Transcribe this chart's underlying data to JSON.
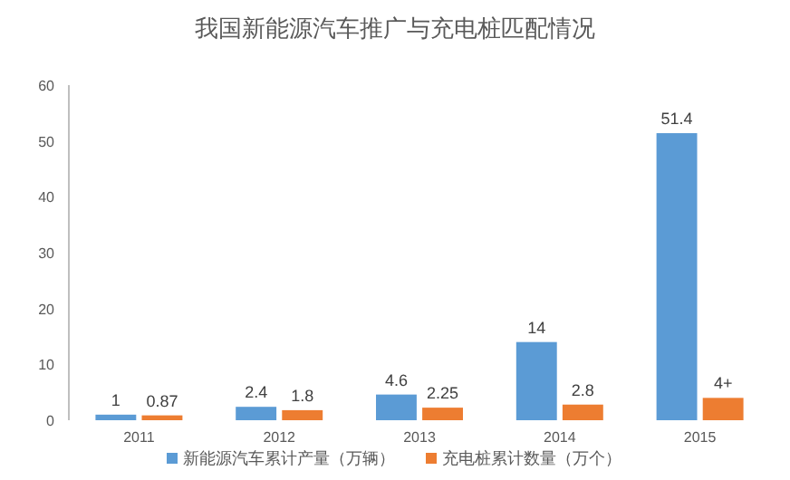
{
  "chart_data": {
    "type": "bar",
    "title": "我国新能源汽车推广与充电桩匹配情况",
    "categories": [
      "2011",
      "2012",
      "2013",
      "2014",
      "2015"
    ],
    "series": [
      {
        "name": "新能源汽车累计产量（万辆）",
        "color": "#5b9bd5",
        "values": [
          1,
          2.4,
          4.6,
          14,
          51.4
        ],
        "value_labels": [
          "1",
          "2.4",
          "4.6",
          "14",
          "51.4"
        ]
      },
      {
        "name": "充电桩累计数量（万个）",
        "color": "#ed7d31",
        "values": [
          0.87,
          1.8,
          2.25,
          2.8,
          4
        ],
        "value_labels": [
          "0.87",
          "1.8",
          "2.25",
          "2.8",
          "4+"
        ]
      }
    ],
    "ylim": [
      0,
      60
    ],
    "yticks": [
      0,
      10,
      20,
      30,
      40,
      50,
      60
    ],
    "grid": false,
    "legend": "bottom"
  }
}
